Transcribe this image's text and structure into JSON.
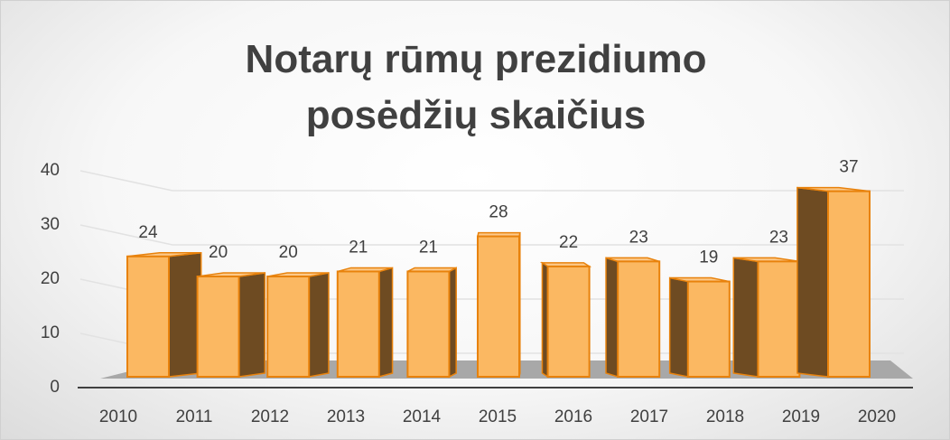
{
  "chart_data": {
    "type": "bar3d",
    "title": "Notarų rūmų prezidiumo posėdžių skaičius",
    "categories": [
      "2010",
      "2011",
      "2012",
      "2013",
      "2014",
      "2015",
      "2016",
      "2017",
      "2018",
      "2019",
      "2020"
    ],
    "values": [
      24,
      20,
      20,
      21,
      21,
      28,
      22,
      23,
      19,
      23,
      37
    ],
    "color": "#fbb862",
    "ylim": [
      0,
      40
    ],
    "yticks": [
      0,
      10,
      20,
      30,
      40
    ],
    "grid": true
  }
}
